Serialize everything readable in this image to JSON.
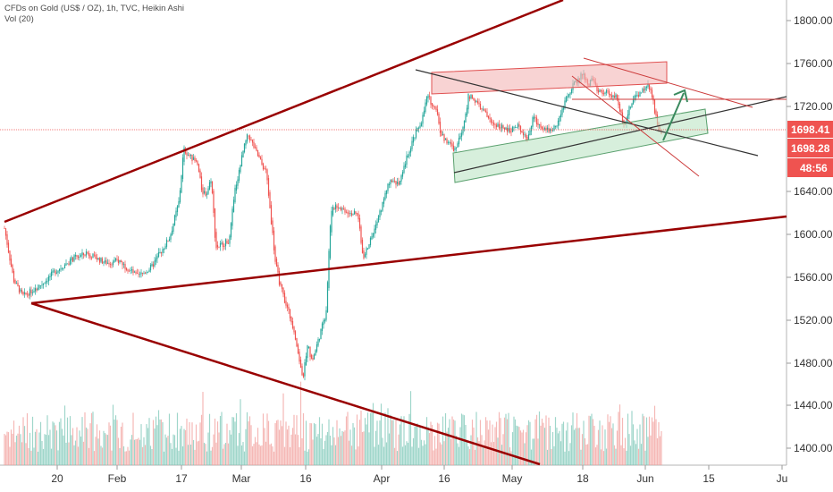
{
  "legend": {
    "title": "CFDs on Gold (US$ / OZ), 1h, TVC, Heikin Ashi",
    "volume": "Vol (20)"
  },
  "chart_data": {
    "type": "candlestick",
    "y_ticks": [
      "1800.00",
      "1760.00",
      "1720.00",
      "1680.00",
      "1640.00",
      "1600.00",
      "1560.00",
      "1520.00",
      "1480.00",
      "1440.00",
      "1400.00"
    ],
    "x_ticks": [
      "20",
      "Feb",
      "17",
      "Mar",
      "16",
      "Apr",
      "16",
      "May",
      "18",
      "Jun",
      "15",
      "Ju"
    ],
    "ylim": [
      1389,
      1819
    ],
    "price_path": [
      [
        "2020-01-13",
        1608
      ],
      [
        "2020-01-15",
        1560
      ],
      [
        "2020-01-17",
        1545
      ],
      [
        "2020-01-21",
        1556
      ],
      [
        "2020-01-24",
        1568
      ],
      [
        "2020-01-28",
        1580
      ],
      [
        "2020-01-31",
        1585
      ],
      [
        "2020-02-04",
        1576
      ],
      [
        "2020-02-07",
        1578
      ],
      [
        "2020-02-11",
        1563
      ],
      [
        "2020-02-14",
        1572
      ],
      [
        "2020-02-18",
        1600
      ],
      [
        "2020-02-20",
        1633
      ],
      [
        "2020-02-21",
        1681
      ],
      [
        "2020-02-24",
        1667
      ],
      [
        "2020-02-25",
        1642
      ],
      [
        "2020-02-26",
        1640
      ],
      [
        "2020-02-27",
        1655
      ],
      [
        "2020-02-28",
        1590
      ],
      [
        "2020-03-02",
        1597
      ],
      [
        "2020-03-03",
        1640
      ],
      [
        "2020-03-05",
        1680
      ],
      [
        "2020-03-06",
        1695
      ],
      [
        "2020-03-09",
        1667
      ],
      [
        "2020-03-10",
        1660
      ],
      [
        "2020-03-12",
        1575
      ],
      [
        "2020-03-13",
        1555
      ],
      [
        "2020-03-16",
        1515
      ],
      [
        "2020-03-17",
        1490
      ],
      [
        "2020-03-18",
        1470
      ],
      [
        "2020-03-19",
        1500
      ],
      [
        "2020-03-20",
        1485
      ],
      [
        "2020-03-23",
        1530
      ],
      [
        "2020-03-24",
        1620
      ],
      [
        "2020-03-25",
        1630
      ],
      [
        "2020-03-27",
        1625
      ],
      [
        "2020-03-30",
        1620
      ],
      [
        "2020-03-31",
        1580
      ],
      [
        "2020-04-01",
        1590
      ],
      [
        "2020-04-03",
        1612
      ],
      [
        "2020-04-06",
        1655
      ],
      [
        "2020-04-08",
        1648
      ],
      [
        "2020-04-10",
        1680
      ],
      [
        "2020-04-13",
        1710
      ],
      [
        "2020-04-14",
        1730
      ],
      [
        "2020-04-16",
        1718
      ],
      [
        "2020-04-17",
        1695
      ],
      [
        "2020-04-20",
        1680
      ],
      [
        "2020-04-22",
        1705
      ],
      [
        "2020-04-23",
        1730
      ],
      [
        "2020-04-24",
        1728
      ],
      [
        "2020-04-27",
        1712
      ],
      [
        "2020-04-28",
        1705
      ],
      [
        "2020-04-30",
        1703
      ],
      [
        "2020-05-01",
        1698
      ],
      [
        "2020-05-04",
        1702
      ],
      [
        "2020-05-06",
        1690
      ],
      [
        "2020-05-07",
        1711
      ],
      [
        "2020-05-08",
        1705
      ],
      [
        "2020-05-11",
        1698
      ],
      [
        "2020-05-12",
        1703
      ],
      [
        "2020-05-13",
        1712
      ],
      [
        "2020-05-15",
        1735
      ],
      [
        "2020-05-18",
        1752
      ],
      [
        "2020-05-19",
        1738
      ],
      [
        "2020-05-20",
        1750
      ],
      [
        "2020-05-21",
        1732
      ],
      [
        "2020-05-22",
        1735
      ],
      [
        "2020-05-25",
        1730
      ],
      [
        "2020-05-26",
        1715
      ],
      [
        "2020-05-27",
        1705
      ],
      [
        "2020-05-28",
        1718
      ],
      [
        "2020-05-29",
        1728
      ],
      [
        "2020-06-01",
        1740
      ],
      [
        "2020-06-02",
        1730
      ],
      [
        "2020-06-03",
        1705
      ],
      [
        "2020-06-04",
        1698
      ]
    ],
    "last_price": 1698.28,
    "price_tags": [
      {
        "label": "1698.41",
        "value": 1698.41
      },
      {
        "label": "1698.28",
        "value": 1698.28
      },
      {
        "label": "48:56",
        "value": null
      }
    ],
    "colors": {
      "up": "#26a69a",
      "down": "#ef5350",
      "trendline": "#990000",
      "tag": "#ef5350"
    }
  }
}
